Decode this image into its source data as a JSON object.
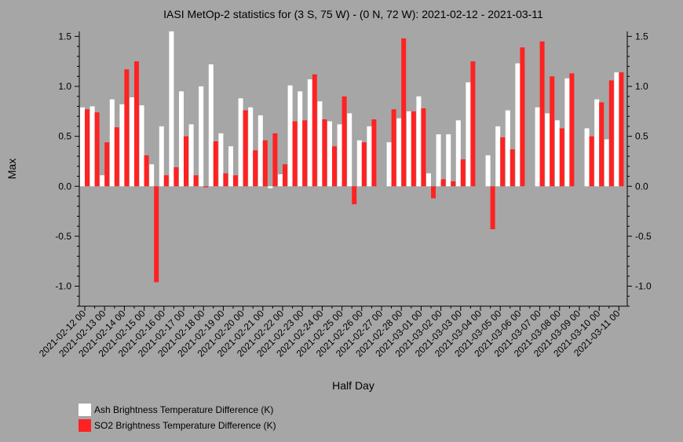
{
  "chart_data": {
    "type": "bar",
    "title": "IASI MetOp-2 statistics for (3 S, 75 W) - (0 N, 72 W): 2021-02-12 - 2021-03-11",
    "xlabel": "Half Day",
    "ylabel": "Max",
    "ylim": [
      -1.2,
      1.55
    ],
    "yticks": [
      "1.5",
      "1.0",
      "0.5",
      "0.0",
      "-0.5",
      "-1.0"
    ],
    "ytick_values": [
      1.5,
      1.0,
      0.5,
      0.0,
      -0.5,
      -1.0
    ],
    "grid": false,
    "legend_position": "bottom-left",
    "categories": [
      "2021-02-12 00",
      "2021-02-12 12",
      "2021-02-13 00",
      "2021-02-13 12",
      "2021-02-14 00",
      "2021-02-14 12",
      "2021-02-15 00",
      "2021-02-15 12",
      "2021-02-16 00",
      "2021-02-16 12",
      "2021-02-17 00",
      "2021-02-17 12",
      "2021-02-18 00",
      "2021-02-18 12",
      "2021-02-19 00",
      "2021-02-19 12",
      "2021-02-20 00",
      "2021-02-20 12",
      "2021-02-21 00",
      "2021-02-21 12",
      "2021-02-22 00",
      "2021-02-22 12",
      "2021-02-23 00",
      "2021-02-23 12",
      "2021-02-24 00",
      "2021-02-24 12",
      "2021-02-25 00",
      "2021-02-25 12",
      "2021-02-26 00",
      "2021-02-26 12",
      "2021-02-27 00",
      "2021-02-27 12",
      "2021-02-28 00",
      "2021-02-28 12",
      "2021-03-01 00",
      "2021-03-01 12",
      "2021-03-02 00",
      "2021-03-02 12",
      "2021-03-03 00",
      "2021-03-03 12",
      "2021-03-04 00",
      "2021-03-04 12",
      "2021-03-05 00",
      "2021-03-05 12",
      "2021-03-06 00",
      "2021-03-06 12",
      "2021-03-07 00",
      "2021-03-07 12",
      "2021-03-08 00",
      "2021-03-08 12",
      "2021-03-09 00",
      "2021-03-09 12",
      "2021-03-10 00",
      "2021-03-10 12",
      "2021-03-11 00"
    ],
    "xtick_labels": [
      "2021-02-12 00",
      "2021-02-13 00",
      "2021-02-14 00",
      "2021-02-15 00",
      "2021-02-16 00",
      "2021-02-17 00",
      "2021-02-18 00",
      "2021-02-19 00",
      "2021-02-20 00",
      "2021-02-21 00",
      "2021-02-22 00",
      "2021-02-23 00",
      "2021-02-24 00",
      "2021-02-25 00",
      "2021-02-26 00",
      "2021-02-27 00",
      "2021-02-28 00",
      "2021-03-01 00",
      "2021-03-02 00",
      "2021-03-03 00",
      "2021-03-04 00",
      "2021-03-05 00",
      "2021-03-06 00",
      "2021-03-07 00",
      "2021-03-08 00",
      "2021-03-09 00",
      "2021-03-10 00",
      "2021-03-11 00"
    ],
    "series": [
      {
        "name": "Ash Brightness Temperature Difference (K)",
        "color": "#ffffff",
        "values": [
          0.79,
          0.8,
          0.11,
          0.87,
          0.82,
          0.89,
          0.81,
          0.22,
          0.6,
          1.55,
          0.95,
          0.62,
          1.0,
          1.22,
          0.53,
          0.4,
          0.88,
          0.79,
          0.71,
          -0.02,
          0.12,
          1.01,
          0.95,
          1.07,
          0.85,
          0.65,
          0.62,
          0.73,
          0.46,
          0.6,
          null,
          0.44,
          0.68,
          0.75,
          0.9,
          0.13,
          0.52,
          0.52,
          0.66,
          1.04,
          null,
          0.31,
          0.6,
          0.76,
          1.23,
          null,
          0.79,
          0.73,
          0.66,
          1.08,
          null,
          0.58,
          0.87,
          0.47,
          1.14
        ]
      },
      {
        "name": "SO2 Brightness Temperature Difference (K)",
        "color": "#ff2222",
        "values": [
          0.77,
          0.74,
          0.44,
          0.59,
          1.17,
          1.25,
          0.31,
          -0.96,
          0.11,
          0.19,
          0.5,
          0.11,
          -0.01,
          0.45,
          0.13,
          0.11,
          0.76,
          0.36,
          0.46,
          0.53,
          0.22,
          0.65,
          0.66,
          1.12,
          0.67,
          0.4,
          0.9,
          -0.18,
          0.44,
          0.67,
          null,
          0.77,
          1.48,
          0.75,
          0.78,
          -0.12,
          0.07,
          0.05,
          0.27,
          1.25,
          null,
          -0.43,
          0.49,
          0.37,
          1.39,
          null,
          1.45,
          1.1,
          0.58,
          1.13,
          null,
          0.5,
          0.84,
          1.06,
          1.14
        ]
      }
    ]
  }
}
